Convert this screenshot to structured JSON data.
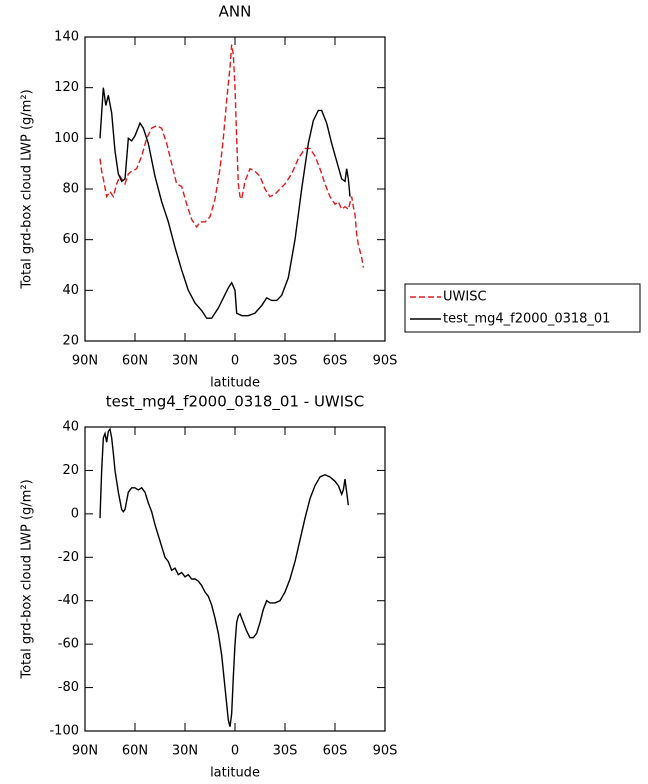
{
  "chart_data": [
    {
      "type": "line",
      "title": "ANN",
      "xlabel": "latitude",
      "ylabel": "Total grd-box cloud LWP (g/m²)",
      "xlim": [
        90,
        -90
      ],
      "ylim": [
        20,
        140
      ],
      "xticks": [
        {
          "value": 90,
          "label": "90N"
        },
        {
          "value": 60,
          "label": "60N"
        },
        {
          "value": 30,
          "label": "30N"
        },
        0,
        {
          "value": -30,
          "label": "30S"
        },
        {
          "value": -60,
          "label": "60S"
        },
        {
          "value": -90,
          "label": "90S"
        }
      ],
      "yticks": [
        20,
        40,
        60,
        80,
        100,
        120,
        140
      ],
      "legend": "right",
      "series": [
        {
          "name": "UWISC",
          "color": "#e41a1c",
          "line_style": "dashed",
          "x": [
            81,
            80,
            79,
            77,
            75,
            73,
            71,
            69,
            66,
            64,
            62,
            59,
            56,
            53,
            50,
            47,
            44,
            41,
            38,
            35,
            32,
            29,
            26,
            23,
            21,
            18,
            15,
            12,
            9,
            7,
            5,
            3,
            2,
            1,
            0,
            -1,
            -2,
            -3,
            -4,
            -6,
            -9,
            -12,
            -15,
            -18,
            -21,
            -24,
            -27,
            -30,
            -34,
            -38,
            -42,
            -45,
            -48,
            -51,
            -54,
            -57,
            -60,
            -62,
            -64,
            -66,
            -68,
            -70,
            -71,
            -72,
            -73,
            -74,
            -76,
            -77
          ],
          "values": [
            92,
            87,
            84,
            77,
            79,
            77,
            82,
            85,
            82,
            86,
            87,
            88,
            93,
            100,
            104,
            105,
            104,
            98,
            90,
            82,
            81,
            74,
            68,
            65,
            67,
            67,
            69,
            76,
            88,
            100,
            115,
            128,
            137,
            133,
            120,
            100,
            82,
            77,
            76,
            83,
            88,
            87,
            85,
            80,
            77,
            78,
            80,
            82,
            86,
            92,
            96,
            96,
            93,
            88,
            82,
            77,
            74,
            75,
            72,
            73,
            72,
            77,
            73,
            70,
            62,
            58,
            53,
            49
          ]
        },
        {
          "name": "test_mg4_f2000_0318_01",
          "color": "#000000",
          "line_style": "solid",
          "x": [
            81,
            79,
            77.5,
            76,
            74,
            72,
            70,
            68,
            66,
            64,
            62,
            60,
            57,
            55,
            52,
            48,
            44,
            40,
            36,
            32,
            28,
            24,
            20,
            17,
            14,
            10,
            7,
            4,
            2,
            0,
            -1,
            -4,
            -8,
            -12,
            -16,
            -19,
            -22,
            -25,
            -28,
            -32,
            -36,
            -40,
            -44,
            -47,
            -50,
            -52,
            -55,
            -58,
            -61,
            -64,
            -66,
            -67,
            -68,
            -69
          ],
          "values": [
            100,
            120,
            113,
            117,
            110,
            95,
            86,
            83,
            84,
            100,
            99,
            101,
            106,
            104,
            98,
            85,
            75,
            67,
            57,
            48,
            40,
            35,
            32,
            29,
            29,
            33,
            37,
            41,
            43,
            40,
            31,
            30,
            30,
            31,
            34,
            37,
            36,
            36,
            38,
            45,
            60,
            80,
            98,
            107,
            111,
            111,
            106,
            98,
            91,
            84,
            83,
            88,
            84,
            77
          ]
        }
      ]
    },
    {
      "type": "line",
      "title": "test_mg4_f2000_0318_01 - UWISC",
      "xlabel": "latitude",
      "ylabel": "Total grd-box cloud LWP (g/m²)",
      "xlim": [
        90,
        -90
      ],
      "ylim": [
        -100,
        40
      ],
      "xticks": [
        {
          "value": 90,
          "label": "90N"
        },
        {
          "value": 60,
          "label": "60N"
        },
        {
          "value": 30,
          "label": "30N"
        },
        0,
        {
          "value": -30,
          "label": "30S"
        },
        {
          "value": -60,
          "label": "60S"
        },
        {
          "value": -90,
          "label": "90S"
        }
      ],
      "yticks": [
        -100,
        -80,
        -60,
        -40,
        -20,
        0,
        20,
        40
      ],
      "series": [
        {
          "color": "#000000",
          "line_style": "solid",
          "x": [
            81,
            80,
            79,
            78,
            77,
            76,
            75,
            74,
            73,
            72,
            70,
            68,
            67,
            66,
            64,
            62,
            60,
            58,
            56,
            54,
            52,
            50,
            48,
            46,
            44,
            42,
            40,
            38,
            36,
            34,
            32,
            30,
            28,
            26,
            24,
            22,
            20,
            18,
            16,
            14,
            12,
            10,
            8,
            6,
            4,
            3,
            2,
            1,
            0,
            -1,
            -2,
            -3,
            -5,
            -7,
            -9,
            -11,
            -13,
            -15,
            -17,
            -19,
            -21,
            -24,
            -27,
            -30,
            -33,
            -36,
            -39,
            -42,
            -45,
            -48,
            -51,
            -54,
            -57,
            -60,
            -62,
            -64,
            -65,
            -66,
            -67,
            -68
          ],
          "values": [
            -2,
            20,
            35,
            37,
            33,
            38,
            39,
            35,
            28,
            20,
            10,
            2,
            1,
            2,
            10,
            12,
            12,
            11,
            12,
            10,
            5,
            1,
            -5,
            -10,
            -15,
            -20,
            -22,
            -26,
            -25,
            -28,
            -27,
            -29,
            -28,
            -30,
            -30,
            -31,
            -33,
            -36,
            -38,
            -42,
            -48,
            -55,
            -65,
            -80,
            -95,
            -98,
            -92,
            -75,
            -60,
            -50,
            -47,
            -46,
            -50,
            -54,
            -57,
            -57,
            -55,
            -50,
            -44,
            -40,
            -41,
            -41,
            -40,
            -36,
            -30,
            -22,
            -12,
            -2,
            7,
            13,
            17,
            18,
            17,
            15,
            13,
            9,
            11,
            16,
            10,
            4
          ]
        }
      ]
    }
  ]
}
